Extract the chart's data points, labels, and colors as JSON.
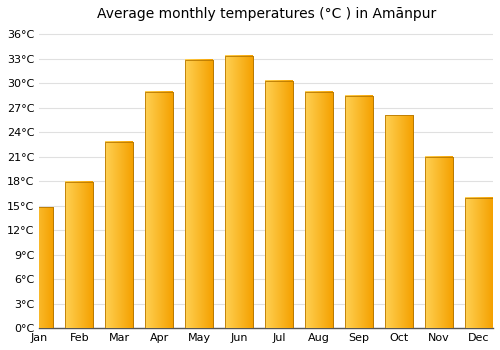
{
  "title": "Average monthly temperatures (°C ) in Amānpur",
  "months": [
    "Jan",
    "Feb",
    "Mar",
    "Apr",
    "May",
    "Jun",
    "Jul",
    "Aug",
    "Sep",
    "Oct",
    "Nov",
    "Dec"
  ],
  "values": [
    14.8,
    17.9,
    22.8,
    29.0,
    32.9,
    33.4,
    30.3,
    29.0,
    28.5,
    26.1,
    21.0,
    16.0
  ],
  "bar_color_left": "#FFD055",
  "bar_color_right": "#F5A000",
  "bar_edge_color": "#B87800",
  "ylim": [
    0,
    37
  ],
  "yticks": [
    0,
    3,
    6,
    9,
    12,
    15,
    18,
    21,
    24,
    27,
    30,
    33,
    36
  ],
  "ytick_labels": [
    "0°C",
    "3°C",
    "6°C",
    "9°C",
    "12°C",
    "15°C",
    "18°C",
    "21°C",
    "24°C",
    "27°C",
    "30°C",
    "33°C",
    "36°C"
  ],
  "bg_color": "#ffffff",
  "grid_color": "#e0e0e0",
  "title_fontsize": 10,
  "tick_fontsize": 8
}
